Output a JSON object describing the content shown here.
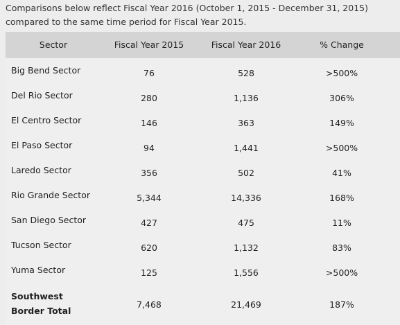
{
  "intro": "Comparisons below reflect Fiscal Year 2016 (October 1, 2015 - December 31, 2015) compared to the same time period for Fiscal Year 2015.",
  "table": {
    "headers": [
      "Sector",
      "Fiscal Year 2015",
      "Fiscal Year 2016",
      "% Change"
    ],
    "rows": [
      [
        "Big Bend Sector",
        "76",
        "528",
        ">500%"
      ],
      [
        "Del Rio Sector",
        "280",
        "1,136",
        "306%"
      ],
      [
        "El Centro Sector",
        "146",
        "363",
        "149%"
      ],
      [
        "El Paso Sector",
        "94",
        "1,441",
        ">500%"
      ],
      [
        "Laredo Sector",
        "356",
        "502",
        "41%"
      ],
      [
        "Rio Grande Sector",
        "5,344",
        "14,336",
        "168%"
      ],
      [
        "San Diego Sector",
        "427",
        "475",
        "11%"
      ],
      [
        "Tucson Sector",
        "620",
        "1,132",
        "83%"
      ],
      [
        "Yuma Sector",
        "125",
        "1,556",
        ">500%"
      ],
      [
        "Southwest Border Total",
        "7,468",
        "21,469",
        "187%"
      ]
    ]
  }
}
